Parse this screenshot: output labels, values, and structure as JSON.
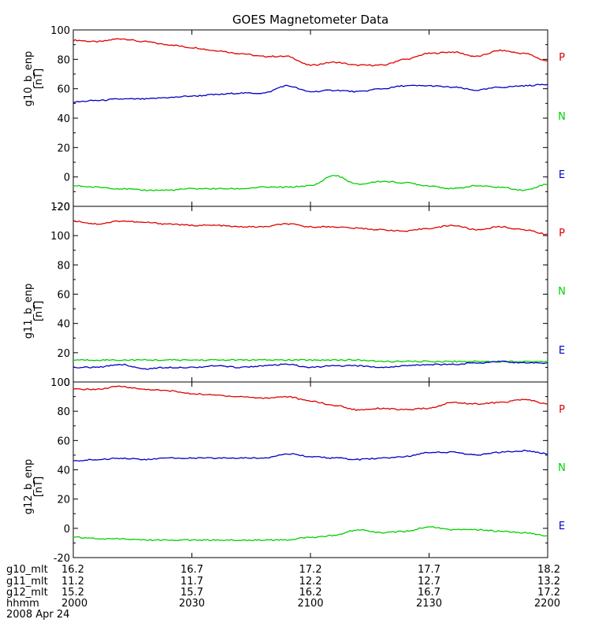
{
  "title": "GOES Magnetometer Data",
  "colors": {
    "P": "#e00000",
    "N": "#00d000",
    "E": "#0000c0",
    "axis": "#000000"
  },
  "chart_data": [
    {
      "type": "line",
      "ylabel": "g10_b_enp",
      "unit": "[nT]",
      "ylim": [
        -20,
        100
      ],
      "yticks": [
        "100",
        "80",
        "60",
        "40",
        "20",
        "0",
        "-20"
      ],
      "ytick_values": [
        100,
        80,
        60,
        40,
        20,
        0,
        -20
      ],
      "x": [
        0,
        3,
        6,
        9,
        12,
        15,
        18,
        21,
        24,
        27,
        30,
        33,
        36,
        39,
        42,
        45,
        48,
        51,
        54,
        57,
        60
      ],
      "series": [
        {
          "name": "P",
          "color_key": "P",
          "values": [
            93,
            92,
            94,
            92,
            90,
            88,
            86,
            84,
            82,
            82,
            76,
            78,
            76,
            76,
            80,
            84,
            85,
            82,
            86,
            84,
            79
          ]
        },
        {
          "name": "N",
          "color_key": "E",
          "values": [
            51,
            52,
            53,
            53,
            54,
            55,
            56,
            57,
            57,
            62,
            58,
            59,
            58,
            60,
            62,
            62,
            61,
            59,
            61,
            62,
            63
          ]
        },
        {
          "name": "E",
          "color_key": "N",
          "values": [
            -6,
            -7,
            -8,
            -9,
            -9,
            -8,
            -8,
            -8,
            -7,
            -7,
            -6,
            1,
            -5,
            -3,
            -4,
            -6,
            -8,
            -6,
            -7,
            -9,
            -5
          ]
        }
      ],
      "channel_labels": [
        "P",
        "N",
        "E"
      ]
    },
    {
      "type": "line",
      "ylabel": "g11_b_enp",
      "unit": "[nT]",
      "ylim": [
        0,
        120
      ],
      "yticks": [
        "120",
        "100",
        "80",
        "60",
        "40",
        "20",
        "0"
      ],
      "ytick_values": [
        120,
        100,
        80,
        60,
        40,
        20,
        0
      ],
      "x": [
        0,
        3,
        6,
        9,
        12,
        15,
        18,
        21,
        24,
        27,
        30,
        33,
        36,
        39,
        42,
        45,
        48,
        51,
        54,
        57,
        60
      ],
      "series": [
        {
          "name": "P",
          "color_key": "P",
          "values": [
            110,
            108,
            110,
            109,
            108,
            107,
            107,
            106,
            106,
            108,
            106,
            106,
            105,
            104,
            103,
            105,
            107,
            104,
            106,
            104,
            101
          ]
        },
        {
          "name": "N",
          "color_key": "N",
          "values": [
            15,
            15,
            15,
            15,
            15,
            15,
            15,
            15,
            15,
            15,
            15,
            15,
            15,
            14,
            14,
            14,
            14,
            14,
            14,
            14,
            14
          ]
        },
        {
          "name": "E",
          "color_key": "E",
          "values": [
            10,
            10,
            12,
            9,
            10,
            10,
            11,
            10,
            11,
            12,
            10,
            11,
            11,
            10,
            11,
            12,
            12,
            13,
            14,
            13,
            13
          ]
        }
      ],
      "channel_labels": [
        "P",
        "N",
        "E"
      ]
    },
    {
      "type": "line",
      "ylabel": "g12_b_enp",
      "unit": "[nT]",
      "ylim": [
        -20,
        100
      ],
      "yticks": [
        "100",
        "80",
        "60",
        "40",
        "20",
        "0",
        "-20"
      ],
      "ytick_values": [
        100,
        80,
        60,
        40,
        20,
        0,
        -20
      ],
      "x": [
        0,
        3,
        6,
        9,
        12,
        15,
        18,
        21,
        24,
        27,
        30,
        33,
        36,
        39,
        42,
        45,
        48,
        51,
        54,
        57,
        60
      ],
      "series": [
        {
          "name": "P",
          "color_key": "P",
          "values": [
            95,
            95,
            97,
            95,
            94,
            92,
            91,
            90,
            89,
            90,
            87,
            84,
            81,
            82,
            81,
            82,
            86,
            85,
            86,
            88,
            85
          ]
        },
        {
          "name": "N",
          "color_key": "E",
          "values": [
            46,
            47,
            48,
            47,
            48,
            48,
            48,
            48,
            48,
            51,
            49,
            48,
            47,
            48,
            49,
            52,
            52,
            50,
            52,
            53,
            51
          ]
        },
        {
          "name": "E",
          "color_key": "N",
          "values": [
            -6,
            -7,
            -7,
            -8,
            -8,
            -8,
            -8,
            -8,
            -8,
            -8,
            -6,
            -5,
            -1,
            -3,
            -2,
            1,
            -1,
            -1,
            -2,
            -3,
            -5
          ]
        }
      ],
      "channel_labels": [
        "P",
        "N",
        "E"
      ]
    }
  ],
  "xaxis": {
    "xlim": [
      0,
      60
    ],
    "tick_values": [
      0,
      15,
      30,
      45,
      60
    ],
    "rows": [
      {
        "label": "g10_mlt",
        "values": [
          "16.2",
          "16.7",
          "17.2",
          "17.7",
          "18.2"
        ]
      },
      {
        "label": "g11_mlt",
        "values": [
          "11.2",
          "11.7",
          "12.2",
          "12.7",
          "13.2"
        ]
      },
      {
        "label": "g12_mlt",
        "values": [
          "15.2",
          "15.7",
          "16.2",
          "16.7",
          "17.2"
        ]
      },
      {
        "label": "hhmm",
        "values": [
          "2000",
          "2030",
          "2100",
          "2130",
          "2200"
        ]
      }
    ],
    "date": "2008 Apr 24"
  }
}
